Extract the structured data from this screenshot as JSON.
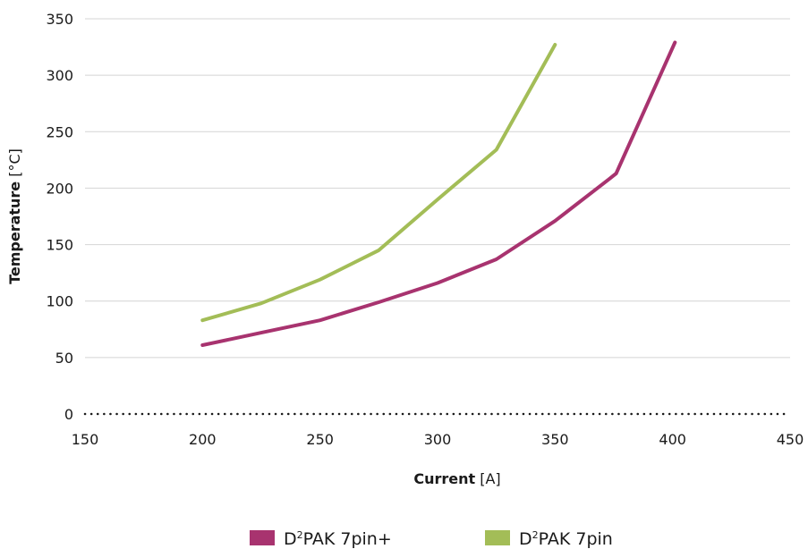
{
  "chart_data": {
    "type": "line",
    "xlabel": {
      "bold": "Current",
      "unit": " [A]"
    },
    "ylabel": {
      "bold": "Temperature",
      "unit": " [°C]"
    },
    "xlim": [
      150,
      450
    ],
    "ylim": [
      0,
      350
    ],
    "xticks": [
      150,
      200,
      250,
      300,
      350,
      400,
      450
    ],
    "yticks": [
      0,
      50,
      100,
      150,
      200,
      250,
      300,
      350
    ],
    "grid": "horizontal",
    "legend_position": "bottom",
    "series": [
      {
        "name_main": "D",
        "name_sup": "2",
        "name_rest": "PAK 7pin+",
        "color": "#a8336f",
        "points": [
          [
            200,
            61
          ],
          [
            225,
            72
          ],
          [
            250,
            83
          ],
          [
            275,
            99
          ],
          [
            300,
            116
          ],
          [
            325,
            137
          ],
          [
            350,
            171
          ],
          [
            373,
            208
          ],
          [
            376,
            213
          ],
          [
            401,
            329
          ]
        ]
      },
      {
        "name_main": "D",
        "name_sup": "2",
        "name_rest": "PAK 7pin",
        "color": "#a3bd57",
        "points": [
          [
            200,
            83
          ],
          [
            225,
            98
          ],
          [
            250,
            119
          ],
          [
            275,
            145
          ],
          [
            300,
            190
          ],
          [
            325,
            234
          ],
          [
            350,
            327
          ]
        ]
      }
    ]
  }
}
